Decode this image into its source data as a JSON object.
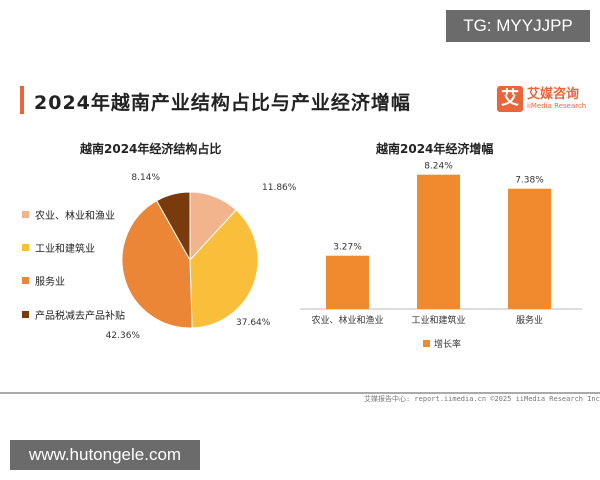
{
  "watermark_top": "TG: MYYJJPP",
  "watermark_bottom": "www.hutongele.com",
  "header": {
    "title": "2024年越南产业结构占比与产业经济增幅",
    "logo_mark": "艾",
    "logo_cn": "艾媒咨询",
    "logo_en": "iiMedia Research"
  },
  "footer": {
    "text": "艾媒报告中心: report.iimedia.cn   ©2025   iiMedia Research Inc"
  },
  "colors": {
    "accent": "#e8663a",
    "agri": "#f2b48c",
    "industry": "#f9bf3b",
    "service": "#ea8636",
    "tax": "#7a3b0c",
    "bar": "#f08a2e"
  },
  "chart_data": [
    {
      "type": "pie",
      "title": "越南2024年经济结构占比",
      "categories": [
        "农业、林业和渔业",
        "工业和建筑业",
        "服务业",
        "产品税减去产品补贴"
      ],
      "values": [
        11.86,
        37.64,
        42.36,
        8.14
      ],
      "labels": [
        "11.86%",
        "37.64%",
        "42.36%",
        "8.14%"
      ],
      "legend": "left"
    },
    {
      "type": "bar",
      "title": "越南2024年经济增幅",
      "categories": [
        "农业、林业和渔业",
        "工业和建筑业",
        "服务业"
      ],
      "series": [
        {
          "name": "增长率",
          "values": [
            3.27,
            8.24,
            7.38
          ]
        }
      ],
      "labels": [
        "3.27%",
        "8.24%",
        "7.38%"
      ],
      "legend": "bottom",
      "grid": false
    }
  ]
}
